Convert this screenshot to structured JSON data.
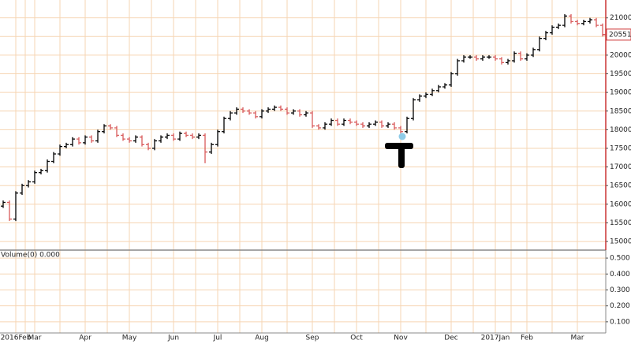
{
  "chart_data": {
    "type": "ohlc",
    "categories": [
      null,
      null,
      "2016Feb",
      null,
      null,
      "Mar",
      null,
      null,
      null,
      null,
      null,
      null,
      null,
      "Apr",
      null,
      null,
      null,
      null,
      null,
      null,
      "May",
      null,
      null,
      null,
      null,
      null,
      null,
      "Jun",
      null,
      null,
      null,
      null,
      null,
      null,
      "Jul",
      null,
      null,
      null,
      null,
      null,
      null,
      "Aug",
      null,
      null,
      null,
      null,
      null,
      null,
      null,
      "Sep",
      null,
      null,
      null,
      null,
      null,
      null,
      "Oct",
      null,
      null,
      null,
      null,
      null,
      null,
      "Nov",
      null,
      null,
      null,
      null,
      null,
      null,
      null,
      "Dec",
      null,
      null,
      null,
      null,
      null,
      null,
      "2017Jan",
      null,
      null,
      null,
      null,
      "Feb",
      null,
      null,
      null,
      null,
      null,
      null,
      null,
      "Mar",
      null,
      null,
      null,
      null
    ],
    "open": [
      15950,
      16050,
      15600,
      16300,
      16500,
      16600,
      16850,
      16900,
      17150,
      17350,
      17550,
      17600,
      17750,
      17650,
      17800,
      17700,
      17950,
      18100,
      18050,
      17850,
      17750,
      17700,
      17800,
      17600,
      17500,
      17700,
      17800,
      17850,
      17750,
      17900,
      17850,
      17800,
      17850,
      17400,
      17600,
      17950,
      18300,
      18450,
      18550,
      18500,
      18450,
      18350,
      18500,
      18550,
      18600,
      18550,
      18450,
      18500,
      18400,
      18450,
      18100,
      18050,
      18150,
      18250,
      18150,
      18250,
      18200,
      18150,
      18100,
      18150,
      18200,
      18100,
      18150,
      18050,
      17950,
      18300,
      18800,
      18900,
      18950,
      19050,
      19150,
      19200,
      19500,
      19850,
      19950,
      19950,
      19900,
      19950,
      19950,
      19900,
      19800,
      19850,
      20050,
      19900,
      20000,
      20150,
      20450,
      20600,
      20750,
      20800,
      21050,
      20900,
      20850,
      20900,
      20950,
      20800
    ],
    "high": [
      16100,
      16100,
      16350,
      16550,
      16650,
      16900,
      16950,
      17200,
      17400,
      17600,
      17650,
      17800,
      17800,
      17850,
      17850,
      18000,
      18150,
      18150,
      18100,
      17900,
      17800,
      17850,
      17850,
      17650,
      17750,
      17850,
      17900,
      17900,
      17950,
      17950,
      17900,
      17900,
      17900,
      17650,
      18000,
      18350,
      18500,
      18600,
      18600,
      18550,
      18500,
      18550,
      18600,
      18650,
      18650,
      18600,
      18550,
      18550,
      18500,
      18500,
      18150,
      18200,
      18300,
      18300,
      18300,
      18300,
      18250,
      18200,
      18200,
      18250,
      18250,
      18200,
      18200,
      18100,
      18350,
      18850,
      18950,
      19000,
      19100,
      19200,
      19250,
      19550,
      19900,
      20000,
      20000,
      20000,
      20000,
      20000,
      20000,
      19950,
      19900,
      20100,
      20100,
      20050,
      20200,
      20500,
      20650,
      20800,
      20850,
      21100,
      21100,
      20950,
      20950,
      21000,
      21000,
      20850
    ],
    "low": [
      15900,
      15550,
      15550,
      16250,
      16450,
      16550,
      16800,
      16850,
      17100,
      17300,
      17500,
      17550,
      17600,
      17600,
      17650,
      17650,
      17900,
      18000,
      17800,
      17700,
      17650,
      17650,
      17550,
      17450,
      17450,
      17650,
      17750,
      17700,
      17700,
      17800,
      17750,
      17750,
      17100,
      17350,
      17550,
      17900,
      18250,
      18400,
      18450,
      18400,
      18300,
      18300,
      18450,
      18500,
      18500,
      18400,
      18400,
      18350,
      18350,
      18050,
      18000,
      18000,
      18100,
      18100,
      18100,
      18150,
      18100,
      18050,
      18050,
      18100,
      18050,
      18050,
      18000,
      17900,
      17900,
      18250,
      18750,
      18850,
      18900,
      19000,
      19100,
      19150,
      19450,
      19800,
      19900,
      19850,
      19850,
      19900,
      19850,
      19750,
      19750,
      19800,
      19850,
      19850,
      19950,
      20100,
      20400,
      20550,
      20700,
      20750,
      20850,
      20800,
      20800,
      20850,
      20750,
      20500
    ],
    "close": [
      16050,
      15600,
      16300,
      16500,
      16600,
      16850,
      16900,
      17150,
      17350,
      17550,
      17600,
      17750,
      17650,
      17800,
      17700,
      17950,
      18100,
      18050,
      17850,
      17750,
      17700,
      17800,
      17600,
      17500,
      17700,
      17800,
      17850,
      17750,
      17900,
      17850,
      17800,
      17850,
      17400,
      17600,
      17950,
      18300,
      18450,
      18550,
      18500,
      18450,
      18350,
      18500,
      18550,
      18600,
      18550,
      18450,
      18500,
      18400,
      18450,
      18100,
      18050,
      18150,
      18250,
      18150,
      18250,
      18200,
      18150,
      18100,
      18150,
      18200,
      18100,
      18150,
      18050,
      17950,
      18300,
      18800,
      18900,
      18950,
      19050,
      19150,
      19200,
      19500,
      19850,
      19950,
      19950,
      19900,
      19950,
      19950,
      19900,
      19800,
      19850,
      20050,
      19900,
      20000,
      20150,
      20450,
      20600,
      20750,
      20800,
      21050,
      20900,
      20850,
      20900,
      20950,
      20800,
      20550
    ],
    "up_color": "#000000",
    "down_color": "#d85a5a",
    "ylim": [
      14790,
      21480
    ],
    "yticks": [
      15000,
      15500,
      16000,
      16500,
      17000,
      17500,
      18000,
      18500,
      19000,
      19500,
      20000,
      20500,
      21000
    ],
    "grid": true,
    "last_value": 20551,
    "volume": {
      "label": "Volume(0) 0.000",
      "ylim": [
        0.03,
        0.545
      ],
      "yticks": [
        {
          "value": 0.5,
          "label": "0.500"
        },
        {
          "value": 0.4,
          "label": "0.400"
        },
        {
          "value": 0.3,
          "label": "0.300"
        },
        {
          "value": 0.2,
          "label": "0.200"
        },
        {
          "value": 0.1,
          "label": "0.100"
        }
      ]
    }
  }
}
